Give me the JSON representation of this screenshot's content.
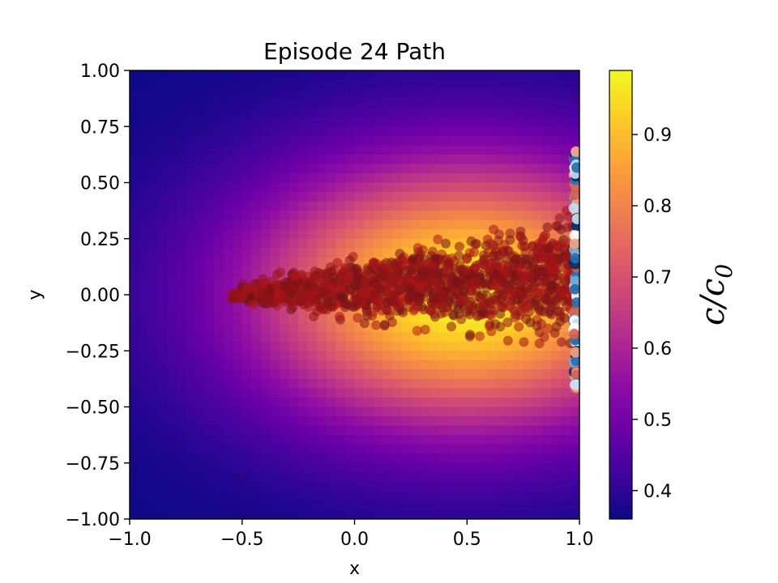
{
  "chart_data": {
    "type": "scatter",
    "title": "Episode 24 Path",
    "xlabel": "x",
    "ylabel": "y",
    "xlim": [
      -1.0,
      1.0
    ],
    "ylim": [
      -1.0,
      1.0
    ],
    "x_ticks": [
      "−1.0",
      "−0.5",
      "0.0",
      "0.5",
      "1.0"
    ],
    "y_ticks": [
      "−1.00",
      "−0.75",
      "−0.50",
      "−0.25",
      "0.00",
      "0.25",
      "0.50",
      "0.75",
      "1.00"
    ],
    "x_tick_values": [
      -1.0,
      -0.5,
      0.0,
      0.5,
      1.0
    ],
    "y_tick_values": [
      -1.0,
      -0.75,
      -0.5,
      -0.25,
      0.0,
      0.25,
      0.5,
      0.75,
      1.0
    ],
    "colormap": "plasma",
    "background_field": {
      "quantity": "c/c0",
      "peak_location": [
        0.5,
        0.0
      ],
      "min": 0.36,
      "max": 0.99
    },
    "colorbar": {
      "label_main": "c/c",
      "label_sub": "0",
      "range": [
        0.36,
        0.99
      ],
      "ticks": [
        "0.4",
        "0.5",
        "0.6",
        "0.7",
        "0.8",
        "0.9"
      ],
      "tick_values": [
        0.4,
        0.5,
        0.6,
        0.7,
        0.8,
        0.9
      ]
    },
    "series": [
      {
        "kind": "path-cloud",
        "color": "#b31b1b",
        "x_range": [
          -0.55,
          0.97
        ],
        "y_range_at_left": [
          -0.05,
          0.05
        ],
        "y_range_at_right": [
          -0.3,
          0.45
        ]
      },
      {
        "kind": "endpoints",
        "x": 0.99,
        "y_range": [
          -0.42,
          0.64
        ],
        "colors": [
          "#08306b",
          "#2171b5",
          "#6baed6",
          "#c6dbef",
          "#ffffff",
          "#f4a582",
          "#d6604d"
        ]
      }
    ]
  }
}
